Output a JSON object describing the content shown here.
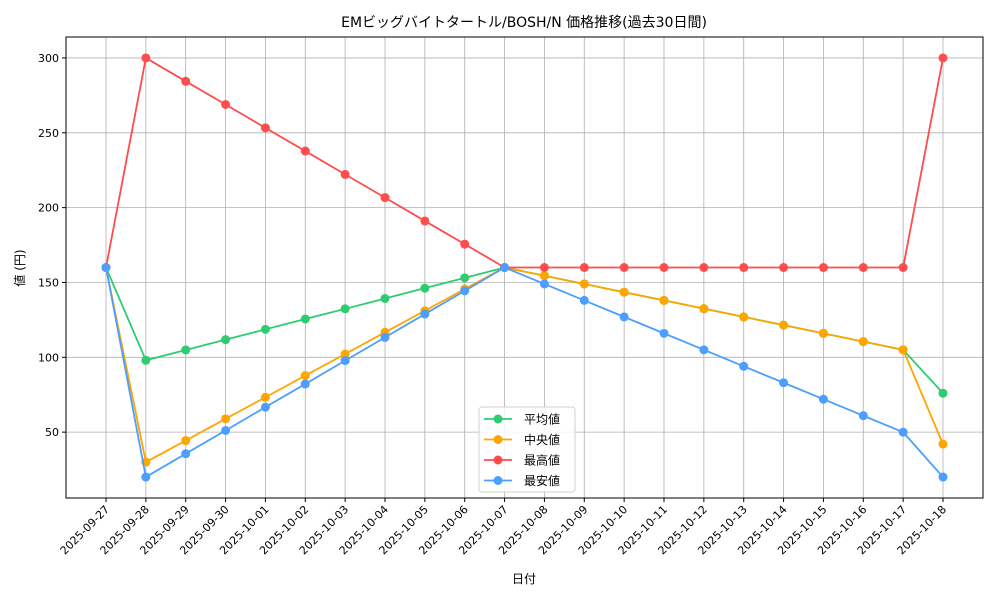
{
  "chart_data": {
    "type": "line",
    "title": "EMビッグバイトタートル/BOSH/N 価格推移(過去30日間)",
    "xlabel": "日付",
    "ylabel": "値 (円)",
    "ylim": [
      6,
      314
    ],
    "yticks": [
      50,
      100,
      150,
      200,
      250,
      300
    ],
    "grid": true,
    "legend_position": "bottom-center",
    "categories": [
      "2025-09-27",
      "2025-09-28",
      "2025-09-29",
      "2025-09-30",
      "2025-10-01",
      "2025-10-02",
      "2025-10-03",
      "2025-10-04",
      "2025-10-05",
      "2025-10-06",
      "2025-10-07",
      "2025-10-08",
      "2025-10-09",
      "2025-10-10",
      "2025-10-11",
      "2025-10-12",
      "2025-10-13",
      "2025-10-14",
      "2025-10-15",
      "2025-10-16",
      "2025-10-17",
      "2025-10-18"
    ],
    "series": [
      {
        "name": "平均値",
        "color": "#2ecc71",
        "values": [
          160,
          98,
          104.9,
          111.8,
          118.7,
          125.6,
          132.4,
          139.3,
          146.2,
          153.1,
          160,
          154.5,
          149,
          143.5,
          138,
          132.5,
          127,
          121.5,
          116,
          110.5,
          105,
          76
        ]
      },
      {
        "name": "中央値",
        "color": "#ffa500",
        "values": [
          160,
          30,
          44.4,
          58.9,
          73.3,
          87.8,
          102.2,
          116.7,
          131.1,
          145.6,
          160,
          154.5,
          149,
          143.5,
          138,
          132.5,
          127,
          121.5,
          116,
          110.5,
          105,
          42
        ]
      },
      {
        "name": "最高値",
        "color": "#ff4c4c",
        "values": [
          160,
          300,
          284.4,
          268.9,
          253.3,
          237.8,
          222.2,
          206.7,
          191.1,
          175.6,
          160,
          160,
          160,
          160,
          160,
          160,
          160,
          160,
          160,
          160,
          160,
          300
        ]
      },
      {
        "name": "最安値",
        "color": "#4c9eff",
        "values": [
          160,
          20,
          35.6,
          51.1,
          66.7,
          82.2,
          97.8,
          113.3,
          128.9,
          144.4,
          160,
          149,
          138,
          127,
          116,
          105,
          94,
          83,
          72,
          61,
          50,
          20
        ]
      }
    ]
  }
}
